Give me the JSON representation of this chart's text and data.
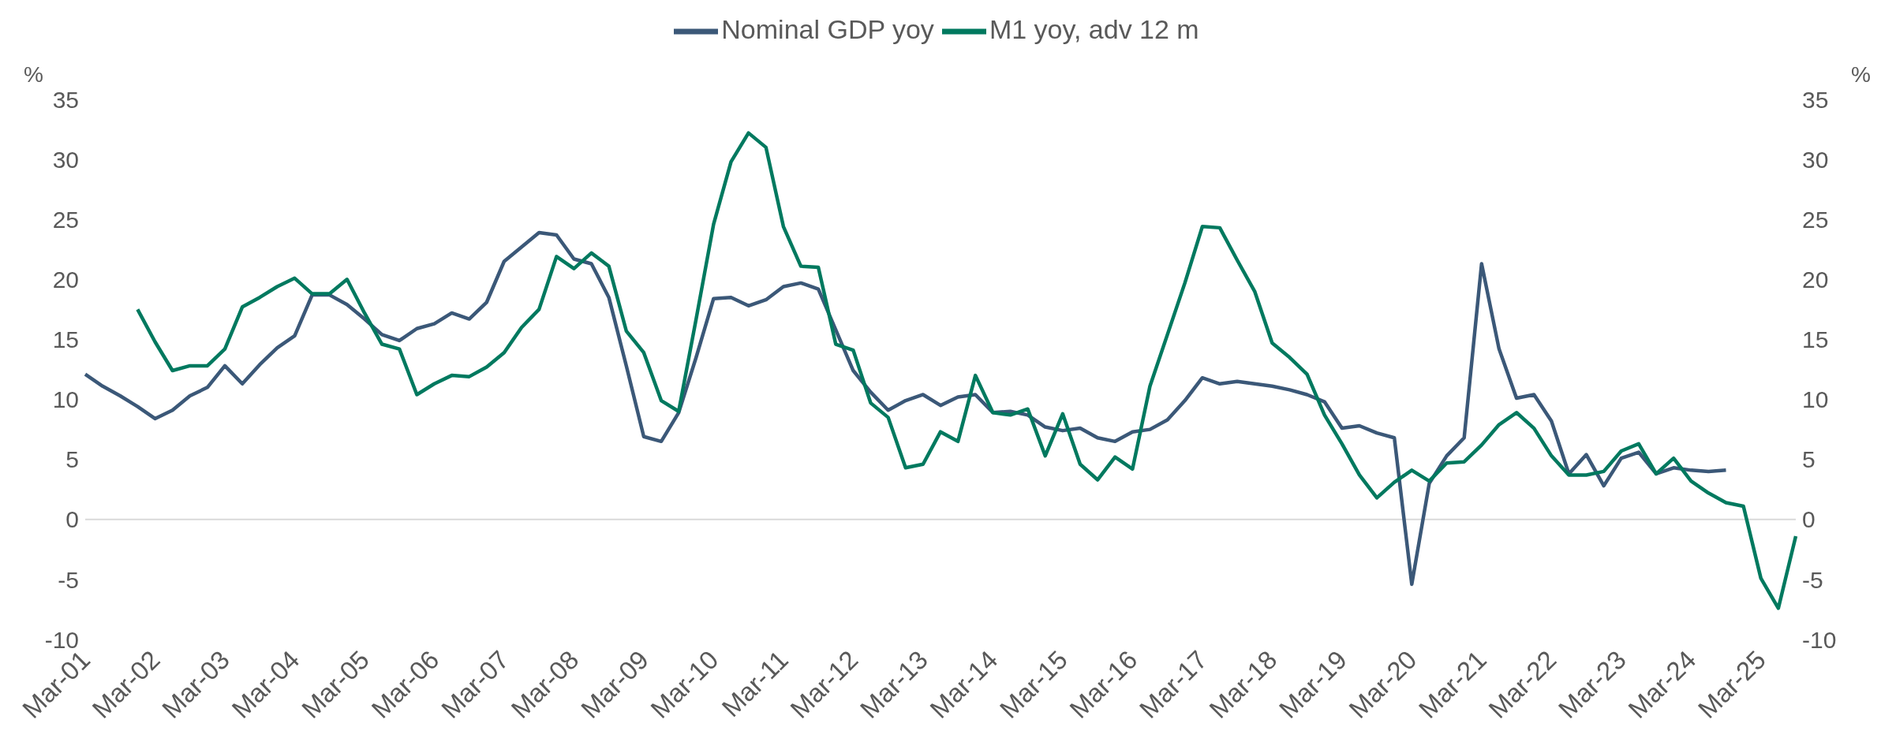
{
  "chart_data": {
    "type": "line",
    "categories": [
      "Mar-01",
      null,
      null,
      null,
      "Mar-02",
      null,
      null,
      null,
      "Mar-03",
      null,
      null,
      null,
      "Mar-04",
      null,
      null,
      null,
      "Mar-05",
      null,
      null,
      null,
      "Mar-06",
      null,
      null,
      null,
      "Mar-07",
      null,
      null,
      null,
      "Mar-08",
      null,
      null,
      null,
      "Mar-09",
      null,
      null,
      null,
      "Mar-10",
      null,
      null,
      null,
      "Mar-11",
      null,
      null,
      null,
      "Mar-12",
      null,
      null,
      null,
      "Mar-13",
      null,
      null,
      null,
      "Mar-14",
      null,
      null,
      null,
      "Mar-15",
      null,
      null,
      null,
      "Mar-16",
      null,
      null,
      null,
      "Mar-17",
      null,
      null,
      null,
      "Mar-18",
      null,
      null,
      null,
      "Mar-19",
      null,
      null,
      null,
      "Mar-20",
      null,
      null,
      null,
      "Mar-21",
      null,
      null,
      null,
      "Mar-22",
      null,
      null,
      null,
      "Mar-23",
      null,
      null,
      null,
      "Mar-24",
      null,
      null,
      null,
      "Mar-25",
      null,
      null
    ],
    "series": [
      {
        "name": "Nominal GDP yoy",
        "color": "#3b5878",
        "values": [
          12.1,
          11.1,
          10.3,
          9.4,
          8.4,
          9.1,
          10.3,
          11.0,
          12.8,
          11.3,
          12.9,
          14.3,
          15.3,
          18.7,
          18.7,
          17.9,
          16.7,
          15.4,
          14.9,
          15.9,
          16.3,
          17.2,
          16.7,
          18.1,
          21.5,
          22.7,
          23.9,
          23.7,
          21.7,
          21.3,
          18.5,
          12.8,
          6.9,
          6.5,
          8.9,
          13.5,
          18.4,
          18.5,
          17.8,
          18.3,
          19.4,
          19.7,
          19.2,
          15.8,
          12.4,
          10.6,
          9.1,
          9.9,
          10.4,
          9.5,
          10.2,
          10.4,
          8.9,
          9.0,
          8.7,
          7.7,
          7.4,
          7.6,
          6.8,
          6.5,
          7.3,
          7.5,
          8.3,
          9.9,
          11.8,
          11.3,
          11.5,
          11.3,
          11.1,
          10.8,
          10.4,
          9.8,
          7.6,
          7.8,
          7.2,
          6.8,
          -5.4,
          3.0,
          5.3,
          6.8,
          21.3,
          14.2,
          10.1,
          10.4,
          8.2,
          3.8,
          5.4,
          2.8,
          5.1,
          5.6,
          3.8,
          4.3,
          4.1,
          4.0,
          4.1,
          null,
          null,
          null,
          null
        ]
      },
      {
        "name": "M1 yoy, adv 12 m",
        "color": "#00795f",
        "values": [
          null,
          null,
          null,
          17.5,
          14.8,
          12.4,
          12.8,
          12.8,
          14.2,
          17.7,
          18.5,
          19.4,
          20.1,
          18.8,
          18.8,
          20.0,
          17.2,
          14.6,
          14.2,
          10.4,
          11.3,
          12.0,
          11.9,
          12.7,
          13.9,
          16.0,
          17.5,
          21.9,
          20.9,
          22.2,
          21.1,
          15.7,
          13.9,
          9.9,
          9.0,
          16.7,
          24.6,
          29.8,
          32.2,
          31.0,
          24.4,
          21.1,
          21.0,
          14.6,
          14.1,
          9.7,
          8.5,
          4.3,
          4.6,
          7.3,
          6.5,
          12.0,
          8.9,
          8.7,
          9.2,
          5.3,
          8.8,
          4.6,
          3.3,
          5.2,
          4.2,
          11.1,
          15.4,
          19.7,
          24.4,
          24.3,
          21.6,
          19.0,
          14.7,
          13.5,
          12.1,
          8.7,
          6.3,
          3.7,
          1.8,
          3.1,
          4.1,
          3.2,
          4.7,
          4.8,
          6.2,
          7.9,
          8.9,
          7.6,
          5.3,
          3.7,
          3.7,
          4.0,
          5.7,
          6.3,
          3.8,
          5.1,
          3.2,
          2.2,
          1.4,
          1.1,
          -4.9,
          -7.4,
          -1.4
        ]
      }
    ],
    "ylabel": "%",
    "y2label": "%",
    "ylim": [
      -10,
      35
    ],
    "yticks": [
      -10,
      -5,
      0,
      5,
      10,
      15,
      20,
      25,
      30,
      35
    ],
    "y2lim": [
      -10,
      35
    ],
    "y2ticks": [
      -10,
      -5,
      0,
      5,
      10,
      15,
      20,
      25,
      30,
      35
    ],
    "ref_lines": [
      {
        "axis": "y",
        "value": 0,
        "color": "#d9d9d9"
      }
    ],
    "legend": "top",
    "marker": "none",
    "line_style": "solid"
  }
}
